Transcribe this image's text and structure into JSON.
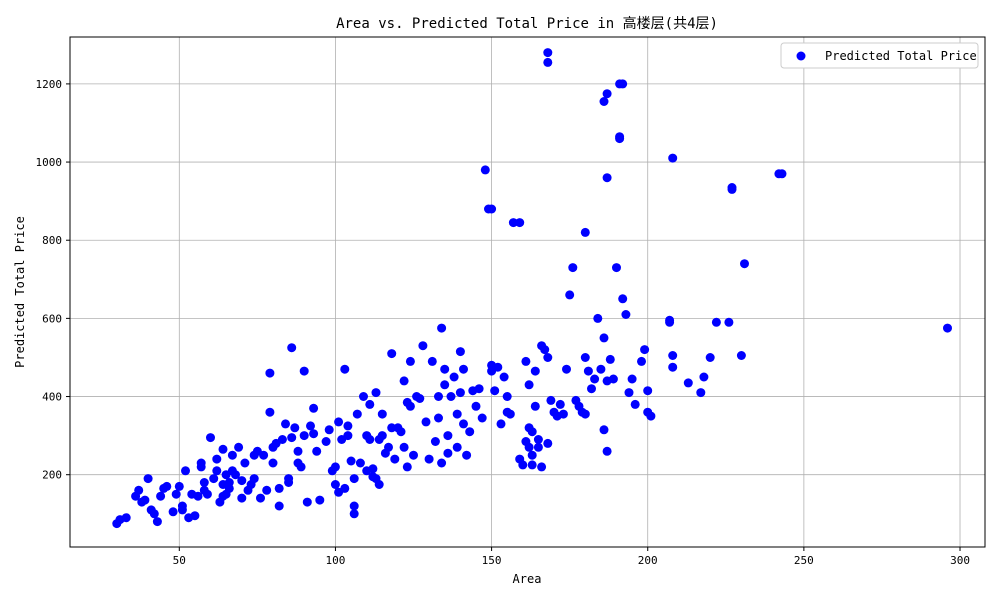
{
  "chart_data": {
    "type": "scatter",
    "title": "Area vs. Predicted Total Price in 高楼层(共4层)",
    "xlabel": "Area",
    "ylabel": "Predicted Total Price",
    "xlim": [
      15,
      308
    ],
    "ylim": [
      15,
      1320
    ],
    "xticks": [
      50,
      100,
      150,
      200,
      250,
      300
    ],
    "yticks": [
      200,
      400,
      600,
      800,
      1000,
      1200
    ],
    "grid": true,
    "legend_position": "top-right",
    "colors": {
      "points": "#0000ff",
      "grid": "#b0b0b0",
      "axes": "#000000"
    },
    "series": [
      {
        "name": "Predicted Total Price",
        "x": [
          30,
          31,
          33,
          36,
          37,
          38,
          39,
          40,
          41,
          42,
          43,
          44,
          45,
          46,
          48,
          49,
          50,
          51,
          51,
          52,
          53,
          54,
          55,
          56,
          57,
          57,
          58,
          58,
          59,
          60,
          61,
          62,
          62,
          63,
          64,
          64,
          64,
          65,
          65,
          66,
          66,
          67,
          67,
          68,
          69,
          70,
          70,
          71,
          72,
          73,
          74,
          74,
          75,
          76,
          77,
          78,
          79,
          79,
          80,
          80,
          81,
          82,
          82,
          83,
          84,
          85,
          85,
          86,
          86,
          87,
          88,
          88,
          89,
          90,
          90,
          91,
          92,
          93,
          93,
          94,
          95,
          97,
          98,
          99,
          100,
          100,
          101,
          101,
          102,
          103,
          103,
          104,
          104,
          105,
          106,
          106,
          106,
          107,
          108,
          109,
          110,
          110,
          111,
          111,
          112,
          112,
          113,
          113,
          114,
          114,
          115,
          115,
          116,
          117,
          118,
          118,
          119,
          120,
          121,
          122,
          122,
          123,
          123,
          124,
          124,
          125,
          126,
          127,
          128,
          129,
          130,
          131,
          132,
          133,
          133,
          134,
          134,
          135,
          135,
          136,
          136,
          137,
          138,
          139,
          139,
          140,
          140,
          141,
          141,
          142,
          143,
          144,
          145,
          146,
          147,
          149,
          150,
          150,
          151,
          152,
          153,
          154,
          155,
          155,
          156,
          157,
          159,
          160,
          161,
          161,
          162,
          162,
          162,
          163,
          163,
          163,
          164,
          164,
          165,
          165,
          166,
          166,
          167,
          168,
          168,
          169,
          170,
          171,
          172,
          173,
          174,
          175,
          176,
          177,
          178,
          179,
          180,
          180,
          181,
          182,
          183,
          184,
          185,
          186,
          186,
          187,
          187,
          188,
          189,
          190,
          191,
          191,
          192,
          193,
          194,
          195,
          196,
          198,
          199,
          200,
          200,
          201,
          207,
          208,
          208,
          213,
          217,
          218,
          220,
          222,
          226,
          227,
          230,
          231,
          242,
          296,
          168,
          168,
          186,
          187,
          191,
          192,
          187,
          207,
          208,
          227,
          243,
          148,
          150,
          159,
          180
        ],
        "y": [
          75,
          85,
          90,
          145,
          160,
          130,
          135,
          190,
          110,
          100,
          80,
          145,
          165,
          170,
          105,
          150,
          170,
          110,
          120,
          210,
          90,
          150,
          95,
          145,
          220,
          230,
          180,
          160,
          150,
          295,
          190,
          240,
          210,
          130,
          145,
          175,
          265,
          150,
          200,
          165,
          180,
          210,
          250,
          200,
          270,
          185,
          140,
          230,
          160,
          175,
          250,
          190,
          260,
          140,
          250,
          160,
          460,
          360,
          270,
          230,
          280,
          165,
          120,
          290,
          330,
          190,
          180,
          525,
          295,
          320,
          230,
          260,
          220,
          465,
          300,
          130,
          325,
          370,
          305,
          260,
          135,
          285,
          315,
          210,
          175,
          220,
          155,
          335,
          290,
          165,
          470,
          325,
          300,
          235,
          120,
          190,
          100,
          355,
          230,
          400,
          300,
          210,
          290,
          380,
          215,
          195,
          190,
          410,
          290,
          175,
          355,
          300,
          255,
          270,
          320,
          510,
          240,
          320,
          310,
          270,
          440,
          385,
          220,
          375,
          490,
          250,
          400,
          395,
          530,
          335,
          240,
          490,
          285,
          400,
          345,
          230,
          575,
          470,
          430,
          300,
          255,
          400,
          450,
          355,
          270,
          410,
          515,
          470,
          330,
          250,
          310,
          415,
          375,
          420,
          345,
          880,
          480,
          465,
          415,
          475,
          330,
          450,
          400,
          360,
          355,
          845,
          240,
          225,
          285,
          490,
          320,
          270,
          430,
          310,
          225,
          250,
          375,
          465,
          290,
          270,
          530,
          220,
          520,
          280,
          500,
          390,
          360,
          350,
          380,
          355,
          470,
          660,
          730,
          390,
          375,
          360,
          355,
          500,
          465,
          420,
          445,
          600,
          470,
          550,
          315,
          1175,
          260,
          495,
          445,
          730,
          1200,
          1065,
          650,
          610,
          410,
          445,
          380,
          490,
          520,
          415,
          360,
          350,
          590,
          505,
          475,
          435,
          410,
          450,
          500,
          590,
          590,
          930,
          505,
          740,
          970,
          575,
          1255,
          1280,
          1155,
          960,
          1060,
          1200,
          440,
          595,
          1010,
          935,
          970,
          980,
          880,
          845,
          820
        ]
      }
    ]
  }
}
